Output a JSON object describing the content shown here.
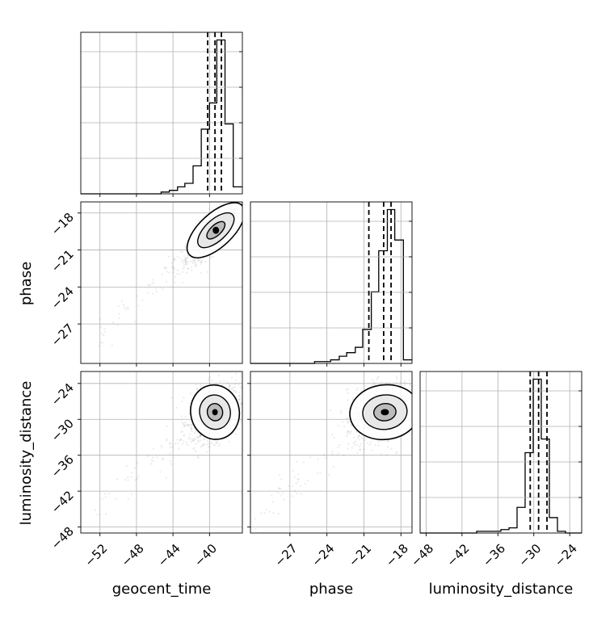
{
  "chart_data": {
    "type": "corner",
    "parameters": [
      "geocent_time",
      "phase",
      "luminosity_distance"
    ],
    "axis_ranges": {
      "geocent_time": [
        -54.1,
        -36.4
      ],
      "phase": [
        -30.2,
        -17.1
      ],
      "luminosity_distance": [
        -49.0,
        -22.0
      ]
    },
    "ticks": {
      "geocent_time": [
        "-52",
        "-48",
        "-44",
        "-40"
      ],
      "phase": [
        "-27",
        "-24",
        "-21",
        "-18"
      ],
      "luminosity_distance": [
        "-48",
        "-42",
        "-36",
        "-30",
        "-24"
      ]
    },
    "quantile_lines": {
      "geocent_time": [
        -40.2,
        -39.4,
        -38.7
      ],
      "phase": [
        -20.6,
        -19.4,
        -18.8
      ],
      "luminosity_distance": [
        -30.6,
        -29.2,
        -27.8
      ]
    },
    "histograms": {
      "geocent_time": {
        "bin_edges": [
          -54.1,
          -53.2,
          -52.3,
          -51.5,
          -50.6,
          -49.7,
          -48.8,
          -47.9,
          -47.1,
          -46.2,
          -45.3,
          -44.4,
          -43.5,
          -42.7,
          -41.8,
          -40.9,
          -40.0,
          -39.2,
          -38.3,
          -37.4,
          -36.4
        ],
        "counts": [
          0,
          0,
          0,
          0,
          0,
          0,
          0,
          0,
          0,
          0,
          1,
          2,
          4,
          6,
          16,
          37,
          52,
          88,
          40,
          4
        ]
      },
      "phase": {
        "bin_edges": [
          -30.2,
          -29.5,
          -28.9,
          -28.2,
          -27.6,
          -26.9,
          -26.3,
          -25.6,
          -25.0,
          -24.3,
          -23.7,
          -23.0,
          -22.4,
          -21.7,
          -21.1,
          -20.4,
          -19.8,
          -19.1,
          -18.5,
          -17.8,
          -17.1
        ],
        "counts": [
          0,
          0,
          0,
          0,
          0,
          0,
          0,
          0,
          1,
          1,
          2,
          4,
          6,
          9,
          19,
          40,
          63,
          86,
          69,
          2
        ]
      },
      "luminosity_distance": {
        "bin_edges": [
          -49.0,
          -47.65,
          -46.3,
          -44.95,
          -43.6,
          -42.25,
          -40.9,
          -39.55,
          -38.2,
          -36.85,
          -35.5,
          -34.15,
          -32.8,
          -31.45,
          -30.1,
          -28.75,
          -27.4,
          -26.05,
          -24.7,
          -23.35,
          -22.0
        ],
        "counts": [
          0,
          0,
          0,
          0,
          0,
          0,
          0,
          1,
          1,
          1,
          2,
          3,
          15,
          47,
          90,
          55,
          9,
          1,
          0,
          0
        ]
      }
    },
    "contours_2d": [
      {
        "x": "geocent_time",
        "y": "phase",
        "peak": [
          -39.3,
          -19.4
        ],
        "spread": [
          1.6,
          1.3
        ],
        "correlation": 0.85
      },
      {
        "x": "geocent_time",
        "y": "luminosity_distance",
        "peak": [
          -39.4,
          -28.8
        ],
        "spread": [
          1.4,
          2.4
        ],
        "correlation": 0.3
      },
      {
        "x": "phase",
        "y": "luminosity_distance",
        "peak": [
          -19.3,
          -28.8
        ],
        "spread": [
          1.5,
          2.4
        ],
        "correlation": 0.25
      }
    ],
    "xlabels": [
      "geocent_time",
      "phase",
      "luminosity_distance"
    ],
    "ylabels": [
      "phase",
      "luminosity_distance"
    ],
    "grid": true
  }
}
